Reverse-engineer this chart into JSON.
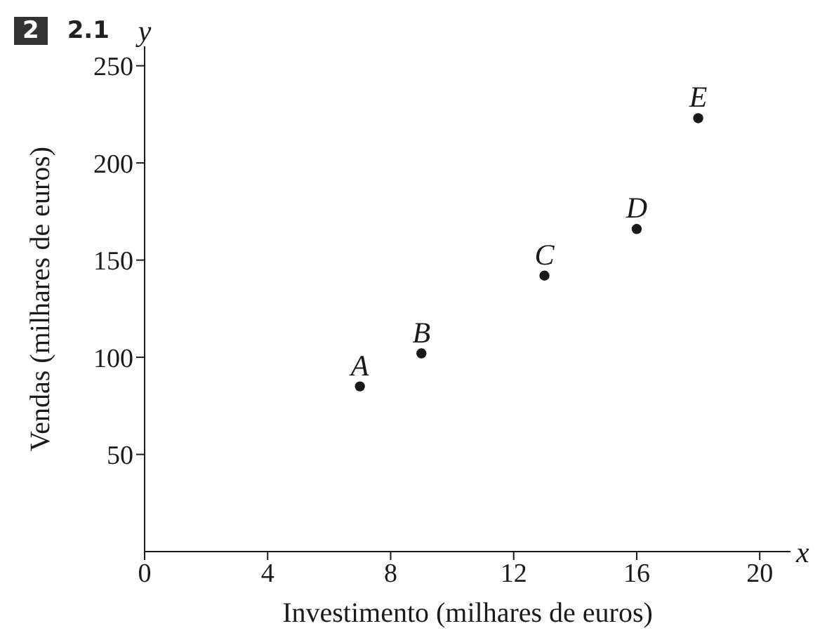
{
  "chart_data": {
    "type": "scatter",
    "xlabel": "Investimento (milhares de euros)",
    "ylabel": "Vendas (milhares de euros)",
    "x": [
      7,
      9,
      13,
      16,
      18
    ],
    "values": [
      85,
      102,
      142,
      166,
      223
    ],
    "color": "#1a1a1a",
    "marker": "circle",
    "xlim": [
      0,
      21
    ],
    "ylim": [
      0,
      260
    ],
    "xticks": [
      0,
      4,
      8,
      12,
      16,
      20
    ],
    "yticks": [
      50,
      100,
      150,
      200,
      250
    ],
    "grid": false,
    "legend": false,
    "annotations": [
      "2",
      "2.1",
      "x",
      "y",
      {
        "text": "A",
        "x": 7,
        "y": 85
      },
      {
        "text": "B",
        "x": 9,
        "y": 102
      },
      {
        "text": "C",
        "x": 13,
        "y": 142
      },
      {
        "text": "D",
        "x": 16,
        "y": 166
      },
      {
        "text": "E",
        "x": 18,
        "y": 223
      }
    ]
  }
}
